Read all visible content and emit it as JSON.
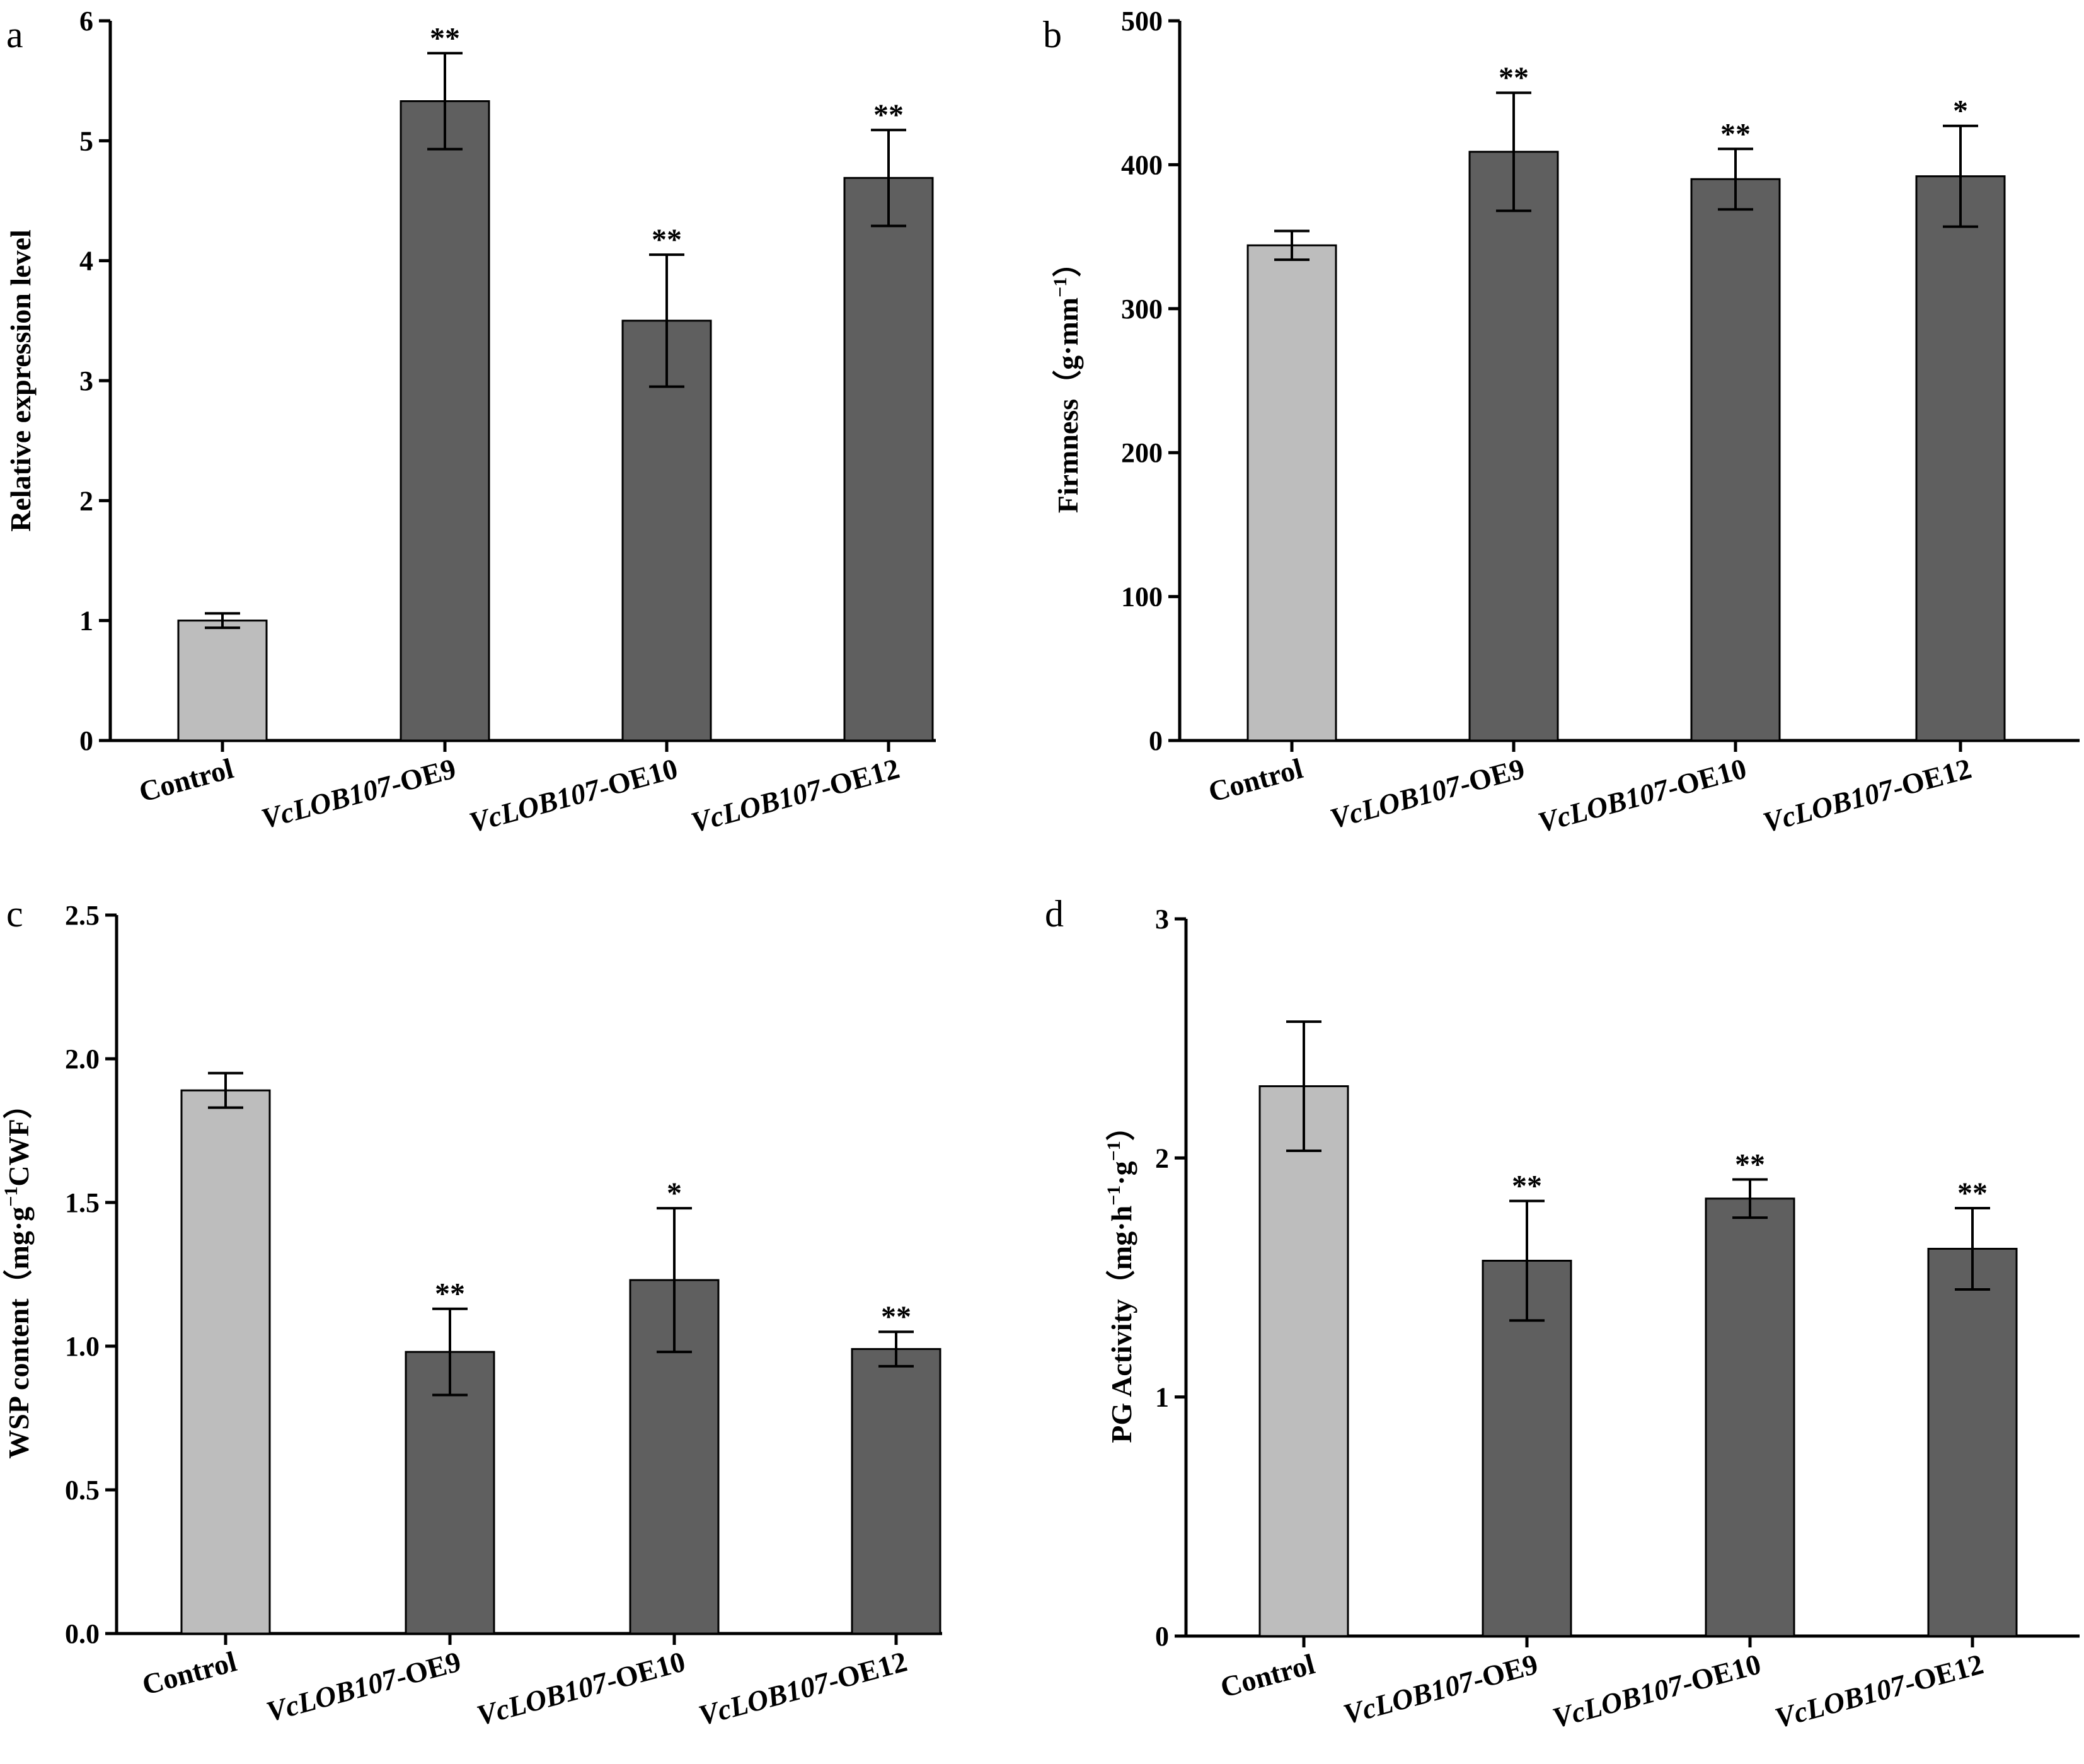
{
  "chart_data": [
    {
      "type": "bar",
      "panel": "a",
      "title": "",
      "xlabel": "",
      "ylabel": "Relative expression level",
      "ylim": [
        0,
        6
      ],
      "yticks": [
        "0",
        "1",
        "2",
        "3",
        "4",
        "5",
        "6"
      ],
      "categories": [
        "Control",
        "VcLOB107-OE9",
        "VcLOB107-OE10",
        "VcLOB107-OE12"
      ],
      "values": [
        1.0,
        5.33,
        3.5,
        4.69
      ],
      "errors": [
        0.06,
        0.4,
        0.55,
        0.4
      ],
      "significance": [
        "",
        "**",
        "**",
        "**"
      ],
      "colors": [
        "#bdbdbd",
        "#5f5f5f",
        "#5f5f5f",
        "#5f5f5f"
      ]
    },
    {
      "type": "bar",
      "panel": "b",
      "title": "",
      "xlabel": "",
      "ylabel": "Firmness（g·mm⁻¹）",
      "ylabel_parts": [
        "Firmness（g·mm",
        "−1",
        "）"
      ],
      "ylim": [
        0,
        500
      ],
      "yticks": [
        "0",
        "100",
        "200",
        "300",
        "400",
        "500"
      ],
      "categories": [
        "Control",
        "VcLOB107-OE9",
        "VcLOB107-OE10",
        "VcLOB107-OE12"
      ],
      "values": [
        344,
        409,
        390,
        392
      ],
      "errors": [
        10,
        41,
        21,
        35
      ],
      "significance": [
        "",
        "**",
        "**",
        "*"
      ],
      "colors": [
        "#bdbdbd",
        "#5f5f5f",
        "#5f5f5f",
        "#5f5f5f"
      ]
    },
    {
      "type": "bar",
      "panel": "c",
      "title": "",
      "xlabel": "",
      "ylabel": "WSP content（mg·g⁻¹CWF）",
      "ylabel_parts": [
        "WSP content（mg·g",
        "−1",
        "CWF）"
      ],
      "ylim": [
        0,
        2.5
      ],
      "yticks": [
        "0.0",
        "0.5",
        "1.0",
        "1.5",
        "2.0",
        "2.5"
      ],
      "categories": [
        "Control",
        "VcLOB107-OE9",
        "VcLOB107-OE10",
        "VcLOB107-OE12"
      ],
      "values": [
        1.89,
        0.98,
        1.23,
        0.99
      ],
      "errors": [
        0.06,
        0.15,
        0.25,
        0.06
      ],
      "significance": [
        "",
        "**",
        "*",
        "**"
      ],
      "colors": [
        "#bdbdbd",
        "#5f5f5f",
        "#5f5f5f",
        "#5f5f5f"
      ]
    },
    {
      "type": "bar",
      "panel": "d",
      "title": "",
      "xlabel": "",
      "ylabel": "PG Activity（mg·h⁻¹·g⁻¹）",
      "ylabel_parts": [
        "PG Activity（mg·h",
        "−1",
        "·g",
        "−1",
        "）"
      ],
      "ylim": [
        0,
        3
      ],
      "yticks": [
        "0",
        "1",
        "2",
        "3"
      ],
      "categories": [
        "Control",
        "VcLOB107-OE9",
        "VcLOB107-OE10",
        "VcLOB107-OE12"
      ],
      "values": [
        2.3,
        1.57,
        1.83,
        1.62
      ],
      "errors": [
        0.27,
        0.25,
        0.08,
        0.17
      ],
      "significance": [
        "",
        "**",
        "**",
        "**"
      ],
      "colors": [
        "#bdbdbd",
        "#5f5f5f",
        "#5f5f5f",
        "#5f5f5f"
      ]
    }
  ]
}
